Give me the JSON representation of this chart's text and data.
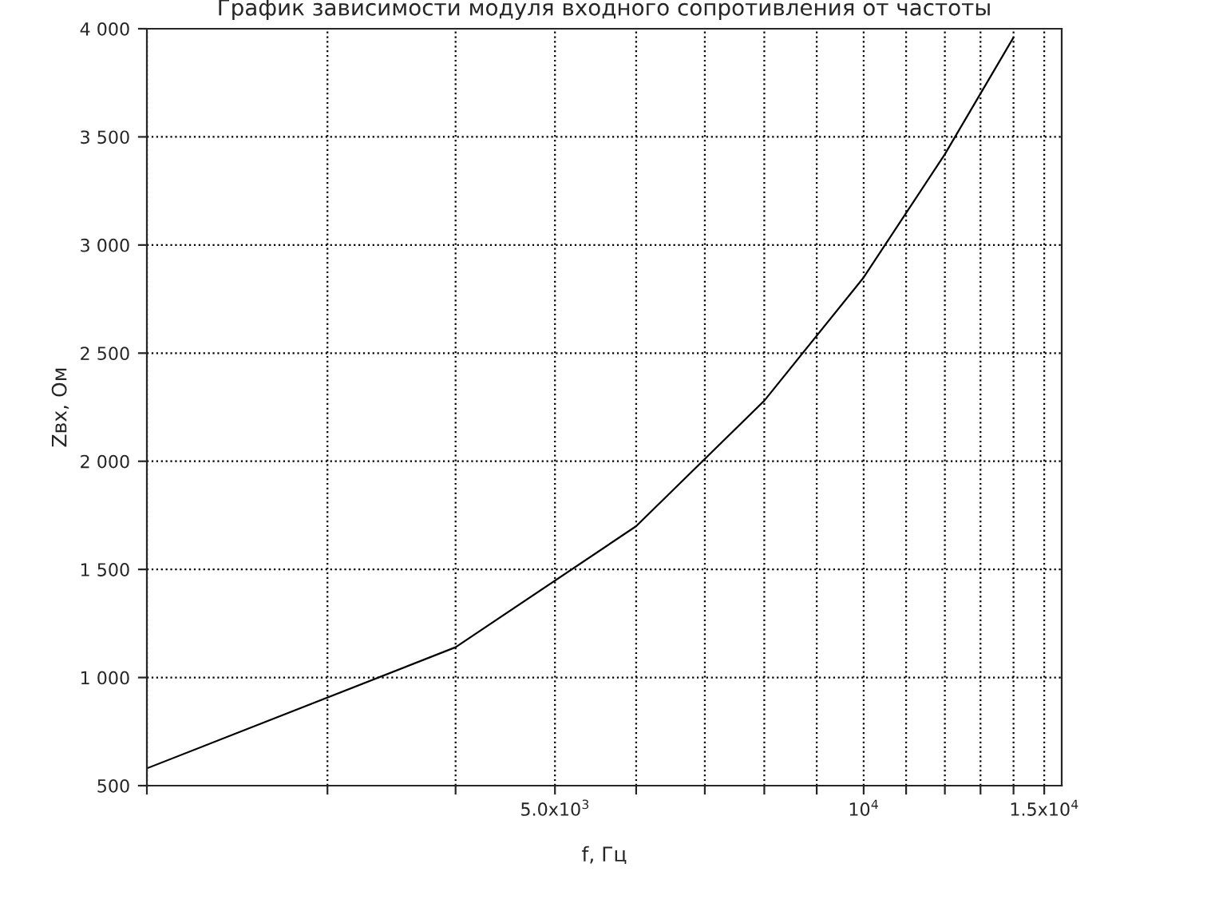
{
  "chart_data": {
    "type": "line",
    "title": "График зависимости модуля входного сопротивления от частоты",
    "xlabel": "f, Гц",
    "ylabel": "Zвх, Ом",
    "x": [
      2000,
      4000,
      6000,
      8000,
      10000,
      12000,
      14000
    ],
    "series": [
      {
        "color": "#000000",
        "values": [
          580,
          1140,
          1700,
          2280,
          2850,
          3420,
          3960
        ]
      }
    ],
    "log": "x",
    "xlim": [
      2000,
      15600
    ],
    "xticks": [
      {
        "value": 2000,
        "label": null
      },
      {
        "value": 3000,
        "label": null
      },
      {
        "value": 4000,
        "label": null
      },
      {
        "value": 5000,
        "label": "5.0x10$^{3}$"
      },
      {
        "value": 6000,
        "label": null
      },
      {
        "value": 7000,
        "label": null
      },
      {
        "value": 8000,
        "label": null
      },
      {
        "value": 9000,
        "label": null
      },
      {
        "value": 10000,
        "label": "10$^{4}$"
      },
      {
        "value": 11000,
        "label": null
      },
      {
        "value": 12000,
        "label": null
      },
      {
        "value": 13000,
        "label": null
      },
      {
        "value": 14000,
        "label": null
      },
      {
        "value": 15000,
        "label": "1.5x10$^{4}$"
      }
    ],
    "ylim": [
      500,
      4000
    ],
    "yticks": [
      {
        "value": 500,
        "label": "500"
      },
      {
        "value": 1000,
        "label": "1 000"
      },
      {
        "value": 1500,
        "label": "1 500"
      },
      {
        "value": 2000,
        "label": "2 000"
      },
      {
        "value": 2500,
        "label": "2 500"
      },
      {
        "value": 3000,
        "label": "3 000"
      },
      {
        "value": 3500,
        "label": "3 500"
      },
      {
        "value": 4000,
        "label": "4 000"
      }
    ],
    "grid": true,
    "line_style": "solid"
  }
}
